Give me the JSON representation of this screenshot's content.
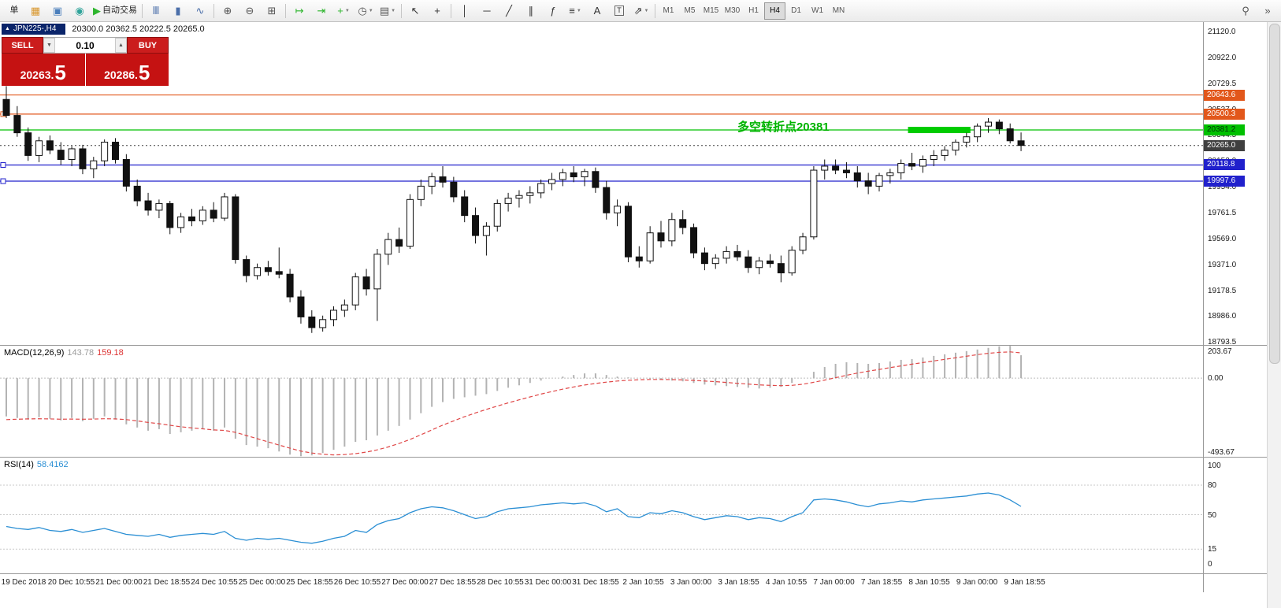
{
  "toolbar": {
    "items": [
      {
        "type": "btn",
        "name": "new-order-button",
        "label": "单"
      },
      {
        "type": "icon",
        "name": "chart-window-icon",
        "glyph": "▦",
        "color": "#d8962c"
      },
      {
        "type": "icon",
        "name": "market-watch-icon",
        "glyph": "▣",
        "color": "#4a7ebb"
      },
      {
        "type": "icon",
        "name": "navigator-icon",
        "glyph": "◉",
        "color": "#2fa39a"
      },
      {
        "type": "btn",
        "name": "autotrading-button",
        "label": "自动交易",
        "glyph": "▶",
        "color": "#2db52d"
      },
      {
        "type": "sep"
      },
      {
        "type": "icon",
        "name": "bar-chart-icon",
        "glyph": "Ⅲ",
        "color": "#4a6ea9"
      },
      {
        "type": "icon",
        "name": "candlestick-chart-icon",
        "glyph": "▮",
        "color": "#4a6ea9"
      },
      {
        "type": "icon",
        "name": "line-chart-icon",
        "glyph": "∿",
        "color": "#4a6ea9"
      },
      {
        "type": "sep"
      },
      {
        "type": "icon",
        "name": "zoom-in-icon",
        "glyph": "⊕",
        "color": "#555555"
      },
      {
        "type": "icon",
        "name": "zoom-out-icon",
        "glyph": "⊖",
        "color": "#555555"
      },
      {
        "type": "icon",
        "name": "tile-windows-icon",
        "glyph": "⊞",
        "color": "#555555"
      },
      {
        "type": "sep"
      },
      {
        "type": "icon",
        "name": "auto-scroll-icon",
        "glyph": "↦",
        "color": "#2db52d"
      },
      {
        "type": "icon",
        "name": "chart-shift-icon",
        "glyph": "⇥",
        "color": "#2db52d"
      },
      {
        "type": "icon",
        "name": "add-indicator-icon",
        "glyph": "+",
        "color": "#2db52d",
        "caret": true
      },
      {
        "type": "icon",
        "name": "periods-icon",
        "glyph": "◷",
        "color": "#555555",
        "caret": true
      },
      {
        "type": "icon",
        "name": "templates-icon",
        "glyph": "▤",
        "color": "#555555",
        "caret": true
      },
      {
        "type": "sep"
      },
      {
        "type": "icon",
        "name": "cursor-icon",
        "glyph": "↖",
        "color": "#333333"
      },
      {
        "type": "icon",
        "name": "crosshair-icon",
        "glyph": "+",
        "color": "#333333"
      },
      {
        "type": "sep"
      },
      {
        "type": "icon",
        "name": "vertical-line-icon",
        "glyph": "│",
        "color": "#333333"
      },
      {
        "type": "icon",
        "name": "horizontal-line-icon",
        "glyph": "─",
        "color": "#333333"
      },
      {
        "type": "icon",
        "name": "trendline-icon",
        "glyph": "╱",
        "color": "#333333"
      },
      {
        "type": "icon",
        "name": "equidistant-channel-icon",
        "glyph": "∥",
        "color": "#333333"
      },
      {
        "type": "icon",
        "name": "fibonacci-icon",
        "glyph": "ƒ",
        "color": "#333333"
      },
      {
        "type": "icon",
        "name": "shapes-icon",
        "glyph": "≡",
        "color": "#333333",
        "caret": true
      },
      {
        "type": "icon",
        "name": "text-icon",
        "glyph": "A",
        "color": "#333333"
      },
      {
        "type": "icon",
        "name": "text-label-icon",
        "glyph": "T",
        "color": "#333333",
        "boxed": true
      },
      {
        "type": "icon",
        "name": "arrows-icon",
        "glyph": "⇗",
        "color": "#333333",
        "caret": true
      },
      {
        "type": "sep"
      }
    ],
    "timeframes": [
      "M1",
      "M5",
      "M15",
      "M30",
      "H1",
      "H4",
      "D1",
      "W1",
      "MN"
    ],
    "active_timeframe": "H4",
    "right_items": [
      {
        "name": "search-icon",
        "glyph": "⚲"
      },
      {
        "name": "toolbar-overflow-icon",
        "glyph": "»"
      }
    ]
  },
  "chart": {
    "symbol_tab": "JPN225-,H4",
    "ohlc": "20300.0 20362.5 20222.5 20265.0",
    "price_max": 21190,
    "price_min": 18770,
    "axis_labels": [
      "21120.0",
      "20922.0",
      "20729.5",
      "20537.0",
      "20344.5",
      "20152.0",
      "19954.0",
      "19761.5",
      "19569.0",
      "19371.0",
      "19178.5",
      "18986.0",
      "18793.5"
    ],
    "levels": [
      {
        "price": 20643.6,
        "label": "20643.6",
        "color": "#e2571b",
        "handle": false
      },
      {
        "price": 20500.3,
        "label": "20500.3",
        "color": "#e2571b",
        "handle": true
      },
      {
        "price": 20381.2,
        "label": "20381.2",
        "color": "#00c000",
        "text_color": "#00320a",
        "handle": false
      },
      {
        "price": 20265.0,
        "label": "20265.0",
        "color": "#3f3f3f",
        "style": "current"
      },
      {
        "price": 20118.8,
        "label": "20118.8",
        "color": "#2020cc",
        "handle": true
      },
      {
        "price": 19997.6,
        "label": "19997.6",
        "color": "#2020cc",
        "handle": true
      }
    ],
    "green_segment": {
      "start_index": 83,
      "end_index": 88,
      "price": 20381.2,
      "color": "#00cc00"
    },
    "annotation": {
      "text": "多空转折点20381",
      "index": 67,
      "price": 20470,
      "color": "#00b400"
    }
  },
  "trade": {
    "sell_label": "SELL",
    "buy_label": "BUY",
    "lot": "0.10",
    "sell_price_main": "20263.",
    "sell_price_big": "5",
    "buy_price_main": "20286.",
    "buy_price_big": "5"
  },
  "macd": {
    "name": "MACD(12,26,9)",
    "main_value": "143.78",
    "signal_value": "159.18",
    "max": 203.67,
    "min": -493.67,
    "scale": [
      {
        "label": "203.67",
        "value": 203.67
      },
      {
        "label": "0.00",
        "value": 0
      },
      {
        "label": "-493.67",
        "value": -493.67
      }
    ]
  },
  "rsi": {
    "name": "RSI(14)",
    "value": "58.4162",
    "scale": [
      {
        "label": "100",
        "value": 100
      },
      {
        "label": "80",
        "value": 80
      },
      {
        "label": "50",
        "value": 50
      },
      {
        "label": "15",
        "value": 15
      },
      {
        "label": "0",
        "value": 0
      }
    ],
    "level_lines": [
      80,
      50,
      15
    ]
  },
  "time_axis": [
    "19 Dec 2018",
    "20 Dec 10:55",
    "21 Dec 00:00",
    "21 Dec 18:55",
    "24 Dec 10:55",
    "25 Dec 00:00",
    "25 Dec 18:55",
    "26 Dec 10:55",
    "27 Dec 00:00",
    "27 Dec 18:55",
    "28 Dec 10:55",
    "31 Dec 00:00",
    "31 Dec 18:55",
    "2 Jan 10:55",
    "3 Jan 00:00",
    "3 Jan 18:55",
    "4 Jan 10:55",
    "7 Jan 00:00",
    "7 Jan 18:55",
    "8 Jan 10:55",
    "9 Jan 00:00",
    "9 Jan 18:55"
  ],
  "chart_data": {
    "type": "candlestick",
    "symbol": "JPN225-",
    "timeframe": "H4",
    "candles": [
      [
        20610,
        20710,
        20470,
        20490
      ],
      [
        20490,
        20560,
        20330,
        20360
      ],
      [
        20360,
        20400,
        20150,
        20190
      ],
      [
        20190,
        20330,
        20140,
        20300
      ],
      [
        20300,
        20340,
        20200,
        20230
      ],
      [
        20230,
        20290,
        20120,
        20160
      ],
      [
        20160,
        20260,
        20110,
        20240
      ],
      [
        20240,
        20270,
        20050,
        20090
      ],
      [
        20090,
        20180,
        20020,
        20150
      ],
      [
        20150,
        20310,
        20110,
        20290
      ],
      [
        20290,
        20320,
        20130,
        20160
      ],
      [
        20160,
        20200,
        19920,
        19960
      ],
      [
        19960,
        20010,
        19810,
        19850
      ],
      [
        19850,
        19910,
        19740,
        19780
      ],
      [
        19780,
        19860,
        19720,
        19830
      ],
      [
        19830,
        19850,
        19600,
        19650
      ],
      [
        19650,
        19760,
        19610,
        19730
      ],
      [
        19730,
        19790,
        19660,
        19700
      ],
      [
        19700,
        19810,
        19670,
        19780
      ],
      [
        19780,
        19840,
        19690,
        19720
      ],
      [
        19720,
        19910,
        19700,
        19880
      ],
      [
        19880,
        19900,
        19380,
        19410
      ],
      [
        19410,
        19440,
        19240,
        19290
      ],
      [
        19290,
        19380,
        19260,
        19350
      ],
      [
        19350,
        19400,
        19290,
        19320
      ],
      [
        19320,
        19500,
        19270,
        19300
      ],
      [
        19300,
        19340,
        19090,
        19130
      ],
      [
        19130,
        19180,
        18930,
        18980
      ],
      [
        18980,
        19030,
        18860,
        18900
      ],
      [
        18900,
        18990,
        18870,
        18960
      ],
      [
        18960,
        19060,
        18910,
        19030
      ],
      [
        19030,
        19110,
        18980,
        19070
      ],
      [
        19070,
        19310,
        19030,
        19280
      ],
      [
        19280,
        19340,
        19140,
        19190
      ],
      [
        19190,
        19490,
        18950,
        19450
      ],
      [
        19450,
        19610,
        19370,
        19560
      ],
      [
        19560,
        19650,
        19460,
        19510
      ],
      [
        19510,
        19900,
        19490,
        19860
      ],
      [
        19860,
        20010,
        19810,
        19960
      ],
      [
        19960,
        20060,
        19900,
        20030
      ],
      [
        20030,
        20110,
        19950,
        19990
      ],
      [
        19990,
        20030,
        19840,
        19880
      ],
      [
        19880,
        19930,
        19690,
        19740
      ],
      [
        19740,
        19800,
        19530,
        19590
      ],
      [
        19590,
        19690,
        19440,
        19660
      ],
      [
        19660,
        19860,
        19620,
        19830
      ],
      [
        19830,
        19910,
        19770,
        19870
      ],
      [
        19870,
        19930,
        19800,
        19890
      ],
      [
        19890,
        19960,
        19830,
        19910
      ],
      [
        19910,
        20010,
        19870,
        19980
      ],
      [
        19980,
        20060,
        19930,
        20010
      ],
      [
        20010,
        20090,
        19960,
        20060
      ],
      [
        20060,
        20110,
        19990,
        20030
      ],
      [
        20030,
        20090,
        19960,
        20070
      ],
      [
        20070,
        20100,
        19910,
        19950
      ],
      [
        19950,
        20000,
        19710,
        19760
      ],
      [
        19760,
        19860,
        19660,
        19810
      ],
      [
        19810,
        19840,
        19390,
        19430
      ],
      [
        19430,
        19510,
        19350,
        19400
      ],
      [
        19400,
        19660,
        19380,
        19610
      ],
      [
        19610,
        19700,
        19500,
        19550
      ],
      [
        19550,
        19760,
        19510,
        19710
      ],
      [
        19710,
        19780,
        19600,
        19650
      ],
      [
        19650,
        19680,
        19420,
        19460
      ],
      [
        19460,
        19500,
        19330,
        19380
      ],
      [
        19380,
        19450,
        19340,
        19420
      ],
      [
        19420,
        19510,
        19380,
        19470
      ],
      [
        19470,
        19520,
        19400,
        19430
      ],
      [
        19430,
        19480,
        19310,
        19350
      ],
      [
        19350,
        19430,
        19300,
        19400
      ],
      [
        19400,
        19450,
        19350,
        19380
      ],
      [
        19380,
        19440,
        19240,
        19310
      ],
      [
        19310,
        19510,
        19290,
        19480
      ],
      [
        19480,
        19610,
        19450,
        19580
      ],
      [
        19580,
        20110,
        19560,
        20080
      ],
      [
        20080,
        20160,
        20010,
        20110
      ],
      [
        20110,
        20160,
        20050,
        20080
      ],
      [
        20080,
        20140,
        20020,
        20060
      ],
      [
        20060,
        20110,
        19950,
        20000
      ],
      [
        20000,
        20060,
        19900,
        19960
      ],
      [
        19960,
        20060,
        19920,
        20040
      ],
      [
        20040,
        20090,
        19980,
        20060
      ],
      [
        20060,
        20160,
        20010,
        20130
      ],
      [
        20130,
        20210,
        20080,
        20110
      ],
      [
        20110,
        20190,
        20060,
        20160
      ],
      [
        20160,
        20230,
        20110,
        20190
      ],
      [
        20190,
        20260,
        20150,
        20230
      ],
      [
        20230,
        20310,
        20190,
        20290
      ],
      [
        20290,
        20360,
        20250,
        20330
      ],
      [
        20330,
        20430,
        20290,
        20410
      ],
      [
        20410,
        20470,
        20360,
        20440
      ],
      [
        20440,
        20460,
        20350,
        20390
      ],
      [
        20390,
        20430,
        20280,
        20300
      ],
      [
        20300,
        20362.5,
        20222.5,
        20265
      ]
    ],
    "macd_hist": [
      -240,
      -250,
      -260,
      -245,
      -255,
      -265,
      -250,
      -270,
      -255,
      -240,
      -260,
      -290,
      -310,
      -330,
      -320,
      -350,
      -340,
      -330,
      -320,
      -330,
      -310,
      -380,
      -420,
      -430,
      -440,
      -460,
      -480,
      -490,
      -485,
      -470,
      -450,
      -430,
      -400,
      -390,
      -360,
      -330,
      -300,
      -260,
      -220,
      -180,
      -150,
      -130,
      -120,
      -110,
      -100,
      -80,
      -60,
      -45,
      -30,
      -15,
      0,
      10,
      20,
      30,
      30,
      20,
      10,
      5,
      0,
      -5,
      -10,
      -15,
      -20,
      -30,
      -40,
      -45,
      -50,
      -55,
      -60,
      -65,
      -60,
      -55,
      -30,
      0,
      40,
      70,
      90,
      100,
      95,
      90,
      95,
      105,
      115,
      120,
      130,
      140,
      150,
      160,
      170,
      180,
      190,
      200,
      203,
      144
    ],
    "macd_signal": [
      -260,
      -258,
      -256,
      -255,
      -256,
      -258,
      -257,
      -258,
      -257,
      -255,
      -256,
      -260,
      -268,
      -278,
      -286,
      -296,
      -305,
      -312,
      -318,
      -325,
      -328,
      -340,
      -360,
      -380,
      -400,
      -420,
      -440,
      -458,
      -470,
      -478,
      -482,
      -480,
      -474,
      -464,
      -450,
      -432,
      -410,
      -385,
      -355,
      -325,
      -295,
      -268,
      -242,
      -218,
      -196,
      -175,
      -155,
      -136,
      -118,
      -100,
      -84,
      -69,
      -55,
      -43,
      -33,
      -25,
      -18,
      -13,
      -10,
      -8,
      -8,
      -9,
      -11,
      -14,
      -18,
      -22,
      -27,
      -32,
      -37,
      -42,
      -45,
      -47,
      -45,
      -38,
      -26,
      -12,
      3,
      18,
      32,
      44,
      55,
      66,
      77,
      88,
      98,
      108,
      118,
      128,
      138,
      148,
      156,
      162,
      165,
      159.18
    ],
    "rsi": [
      38,
      36,
      35,
      37,
      34,
      33,
      35,
      32,
      34,
      36,
      33,
      30,
      29,
      28,
      30,
      27,
      29,
      30,
      31,
      30,
      33,
      26,
      24,
      26,
      25,
      26,
      24,
      22,
      21,
      23,
      26,
      28,
      34,
      32,
      40,
      44,
      46,
      52,
      56,
      58,
      57,
      54,
      50,
      46,
      48,
      53,
      56,
      57,
      58,
      60,
      61,
      62,
      61,
      62,
      59,
      53,
      56,
      48,
      47,
      52,
      51,
      54,
      52,
      48,
      45,
      47,
      49,
      48,
      45,
      47,
      46,
      43,
      48,
      52,
      65,
      66,
      65,
      63,
      60,
      58,
      61,
      62,
      64,
      63,
      65,
      66,
      67,
      68,
      69,
      71,
      72,
      70,
      65,
      58.4162
    ]
  }
}
